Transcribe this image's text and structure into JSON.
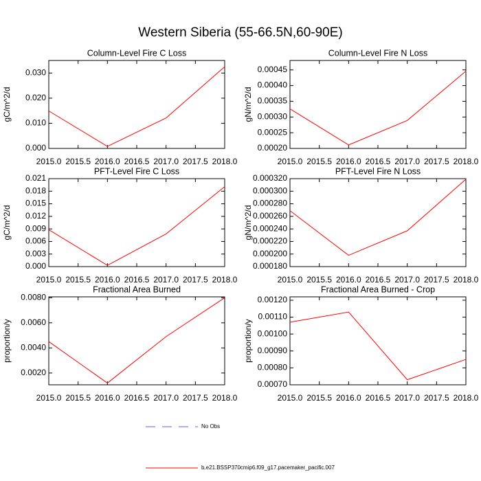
{
  "title": "Western Siberia (55-66.5N,60-90E)",
  "legend": [
    {
      "name": "No Obs",
      "color": "#6a5acd",
      "dashed": true
    },
    {
      "name": "b.e21.BSSP370cmip6.f09_g17.pacemaker_pacific.007",
      "color": "#ff0000",
      "dashed": false
    }
  ],
  "chart_data": [
    {
      "type": "line",
      "title": "Column-Level Fire C Loss",
      "y_label": "gC/m^2/d",
      "x": [
        2015,
        2016,
        2017,
        2018
      ],
      "xlim": [
        2015,
        2018
      ],
      "xticks": [
        {
          "value": 2015,
          "label": "2015.0"
        },
        {
          "value": 2015.5,
          "label": "2015.5"
        },
        {
          "value": 2016,
          "label": "2016.0"
        },
        {
          "value": 2016.5,
          "label": "2016.5"
        },
        {
          "value": 2017,
          "label": "2017.0"
        },
        {
          "value": 2017.5,
          "label": "2017.5"
        },
        {
          "value": 2018,
          "label": "2018.0"
        }
      ],
      "ylim": [
        0,
        0.035
      ],
      "yticks": [
        {
          "value": 0,
          "label": "0.000"
        },
        {
          "value": 0.01,
          "label": "0.010"
        },
        {
          "value": 0.02,
          "label": "0.020"
        },
        {
          "value": 0.03,
          "label": "0.030"
        }
      ],
      "series": [
        {
          "color": "#ff0000",
          "values": [
            0.0149,
            0.0008,
            0.0121,
            0.0325
          ]
        }
      ]
    },
    {
      "type": "line",
      "title": "Column-Level Fire N Loss",
      "y_label": "gN/m^2/d",
      "x": [
        2015,
        2016,
        2017,
        2018
      ],
      "xlim": [
        2015,
        2018
      ],
      "xticks": [
        {
          "value": 2015,
          "label": "2015.0"
        },
        {
          "value": 2015.5,
          "label": "2015.5"
        },
        {
          "value": 2016,
          "label": "2016.0"
        },
        {
          "value": 2016.5,
          "label": "2016.5"
        },
        {
          "value": 2017,
          "label": "2017.0"
        },
        {
          "value": 2017.5,
          "label": "2017.5"
        },
        {
          "value": 2018,
          "label": "2018.0"
        }
      ],
      "ylim": [
        0.0002,
        0.00048
      ],
      "yticks": [
        {
          "value": 0.0002,
          "label": "0.00020"
        },
        {
          "value": 0.00025,
          "label": "0.00025"
        },
        {
          "value": 0.0003,
          "label": "0.00030"
        },
        {
          "value": 0.00035,
          "label": "0.00035"
        },
        {
          "value": 0.0004,
          "label": "0.00040"
        },
        {
          "value": 0.00045,
          "label": "0.00045"
        }
      ],
      "series": [
        {
          "color": "#ff0000",
          "values": [
            0.000326,
            0.000211,
            0.000289,
            0.000446
          ]
        }
      ]
    },
    {
      "type": "line",
      "title": "PFT-Level Fire C Loss",
      "y_label": "gC/m^2/d",
      "x": [
        2015,
        2016,
        2017,
        2018
      ],
      "xlim": [
        2015,
        2018
      ],
      "xticks": [
        {
          "value": 2015,
          "label": "2015.0"
        },
        {
          "value": 2015.5,
          "label": "2015.5"
        },
        {
          "value": 2016,
          "label": "2016.0"
        },
        {
          "value": 2016.5,
          "label": "2016.5"
        },
        {
          "value": 2017,
          "label": "2017.0"
        },
        {
          "value": 2017.5,
          "label": "2017.5"
        },
        {
          "value": 2018,
          "label": "2018.0"
        }
      ],
      "ylim": [
        0,
        0.021
      ],
      "yticks": [
        {
          "value": 0,
          "label": "0.000"
        },
        {
          "value": 0.003,
          "label": "0.003"
        },
        {
          "value": 0.006,
          "label": "0.006"
        },
        {
          "value": 0.009,
          "label": "0.009"
        },
        {
          "value": 0.012,
          "label": "0.012"
        },
        {
          "value": 0.015,
          "label": "0.015"
        },
        {
          "value": 0.018,
          "label": "0.018"
        },
        {
          "value": 0.021,
          "label": "0.021"
        }
      ],
      "series": [
        {
          "color": "#ff0000",
          "values": [
            0.0088,
            0.0003,
            0.0078,
            0.0191
          ]
        }
      ]
    },
    {
      "type": "line",
      "title": "PFT-Level Fire N Loss",
      "y_label": "gN/m^2/d",
      "x": [
        2015,
        2016,
        2017,
        2018
      ],
      "xlim": [
        2015,
        2018
      ],
      "xticks": [
        {
          "value": 2015,
          "label": "2015.0"
        },
        {
          "value": 2015.5,
          "label": "2015.5"
        },
        {
          "value": 2016,
          "label": "2016.0"
        },
        {
          "value": 2016.5,
          "label": "2016.5"
        },
        {
          "value": 2017,
          "label": "2017.0"
        },
        {
          "value": 2017.5,
          "label": "2017.5"
        },
        {
          "value": 2018,
          "label": "2018.0"
        }
      ],
      "ylim": [
        0.00018,
        0.00032
      ],
      "yticks": [
        {
          "value": 0.00018,
          "label": "0.000180"
        },
        {
          "value": 0.0002,
          "label": "0.000200"
        },
        {
          "value": 0.00022,
          "label": "0.000220"
        },
        {
          "value": 0.00024,
          "label": "0.000240"
        },
        {
          "value": 0.00026,
          "label": "0.000260"
        },
        {
          "value": 0.00028,
          "label": "0.000280"
        },
        {
          "value": 0.0003,
          "label": "0.000300"
        },
        {
          "value": 0.00032,
          "label": "0.000320"
        }
      ],
      "series": [
        {
          "color": "#ff0000",
          "values": [
            0.000269,
            0.000198,
            0.000237,
            0.000319
          ]
        }
      ]
    },
    {
      "type": "line",
      "title": "Fractional Area Burned",
      "y_label": "proportion/y",
      "x": [
        2015,
        2016,
        2017,
        2018
      ],
      "xlim": [
        2015,
        2018
      ],
      "xticks": [
        {
          "value": 2015,
          "label": "2015.0"
        },
        {
          "value": 2015.5,
          "label": "2015.5"
        },
        {
          "value": 2016,
          "label": "2016.0"
        },
        {
          "value": 2016.5,
          "label": "2016.5"
        },
        {
          "value": 2017,
          "label": "2017.0"
        },
        {
          "value": 2017.5,
          "label": "2017.5"
        },
        {
          "value": 2018,
          "label": "2018.0"
        }
      ],
      "ylim": [
        0.00106,
        0.00807
      ],
      "yticks": [
        {
          "value": 0.002,
          "label": "0.0020"
        },
        {
          "value": 0.004,
          "label": "0.0040"
        },
        {
          "value": 0.006,
          "label": "0.0060"
        },
        {
          "value": 0.008,
          "label": "0.0080"
        }
      ],
      "series": [
        {
          "color": "#ff0000",
          "values": [
            0.0045,
            0.0012,
            0.0049,
            0.008
          ]
        }
      ]
    },
    {
      "type": "line",
      "title": "Fractional Area Burned - Crop",
      "y_label": "proportion/y",
      "x": [
        2015,
        2016,
        2017,
        2018
      ],
      "xlim": [
        2015,
        2018
      ],
      "xticks": [
        {
          "value": 2015,
          "label": "2015.0"
        },
        {
          "value": 2015.5,
          "label": "2015.5"
        },
        {
          "value": 2016,
          "label": "2016.0"
        },
        {
          "value": 2016.5,
          "label": "2016.5"
        },
        {
          "value": 2017,
          "label": "2017.0"
        },
        {
          "value": 2017.5,
          "label": "2017.5"
        },
        {
          "value": 2018,
          "label": "2018.0"
        }
      ],
      "ylim": [
        0.0007,
        0.00122
      ],
      "yticks": [
        {
          "value": 0.0007,
          "label": "0.00070"
        },
        {
          "value": 0.0008,
          "label": "0.00080"
        },
        {
          "value": 0.0009,
          "label": "0.00090"
        },
        {
          "value": 0.001,
          "label": "0.00100"
        },
        {
          "value": 0.0011,
          "label": "0.00110"
        },
        {
          "value": 0.0012,
          "label": "0.00120"
        }
      ],
      "series": [
        {
          "color": "#ff0000",
          "values": [
            0.00107,
            0.00113,
            0.00073,
            0.00085
          ]
        }
      ]
    }
  ]
}
